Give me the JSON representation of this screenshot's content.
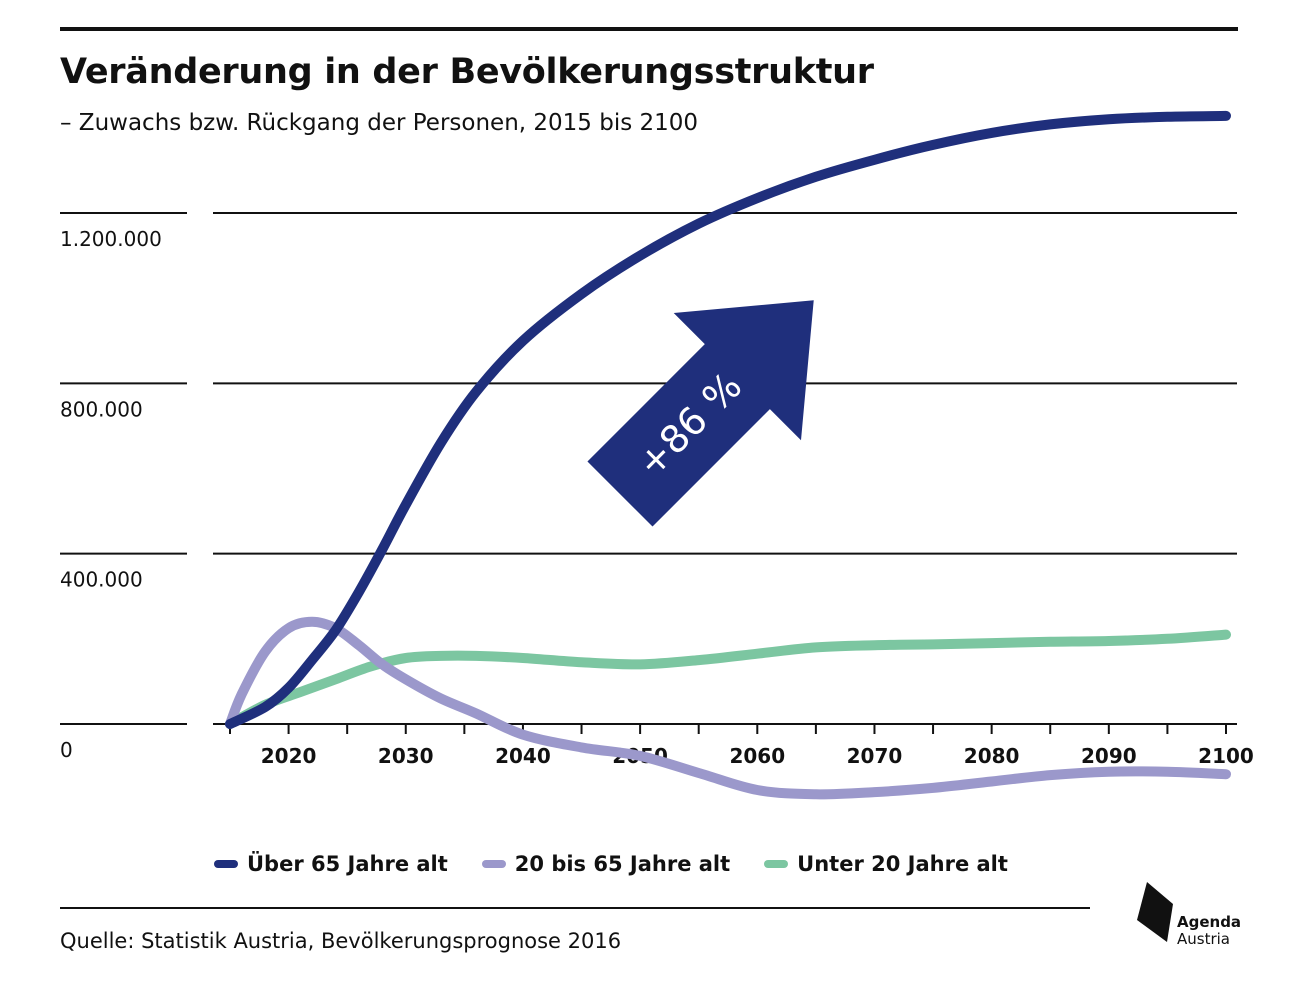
{
  "title": "Veränderung in der Bevölkerungsstruktur",
  "subtitle": "– Zuwachs bzw. Rückgang der Personen, 2015 bis 2100",
  "source": "Quelle: Statistik Austria, Bevölkerungsprognose 2016",
  "logo": {
    "line1": "Agenda",
    "line2": "Austria"
  },
  "annotation": {
    "text": "+86 %",
    "color": "#1f2f7c"
  },
  "chart_data": {
    "type": "line",
    "title": "Veränderung in der Bevölkerungsstruktur",
    "subtitle": "– Zuwachs bzw. Rückgang der Personen, 2015 bis 2100",
    "xlabel": "",
    "ylabel": "",
    "x_ticks": [
      2020,
      2030,
      2040,
      2050,
      2060,
      2070,
      2080,
      2090,
      2100
    ],
    "y_ticks": [
      0,
      400000,
      800000,
      1200000
    ],
    "y_tick_labels": [
      "0",
      "400.000",
      "800.000",
      "1.200.000"
    ],
    "xlim": [
      2015,
      2102
    ],
    "ylim": [
      -150000,
      1400000
    ],
    "grid": "horizontal",
    "legend_position": "bottom",
    "annotations": [
      {
        "text": "+86 %",
        "series": "Über 65 Jahre alt"
      }
    ],
    "series": [
      {
        "name": "Über 65 Jahre alt",
        "color": "#1f2f7c",
        "x": [
          2015,
          2018,
          2020,
          2022,
          2024,
          2026,
          2028,
          2030,
          2033,
          2036,
          2040,
          2045,
          2050,
          2055,
          2060,
          2065,
          2070,
          2075,
          2080,
          2085,
          2090,
          2095,
          2100
        ],
        "y": [
          0,
          40000,
          85000,
          150000,
          220000,
          310000,
          410000,
          515000,
          660000,
          780000,
          900000,
          1010000,
          1100000,
          1175000,
          1235000,
          1285000,
          1325000,
          1360000,
          1388000,
          1408000,
          1420000,
          1426000,
          1428000
        ]
      },
      {
        "name": "20 bis 65 Jahre alt",
        "color": "#9b98cb",
        "x": [
          2015,
          2016,
          2018,
          2020,
          2022,
          2024,
          2026,
          2028,
          2030,
          2033,
          2036,
          2040,
          2045,
          2050,
          2055,
          2060,
          2065,
          2070,
          2075,
          2080,
          2085,
          2090,
          2095,
          2100
        ],
        "y": [
          0,
          70000,
          170000,
          225000,
          240000,
          225000,
          185000,
          140000,
          105000,
          60000,
          25000,
          -25000,
          -55000,
          -75000,
          -115000,
          -155000,
          -165000,
          -160000,
          -150000,
          -135000,
          -120000,
          -112000,
          -112000,
          -118000
        ]
      },
      {
        "name": "Unter 20 Jahre alt",
        "color": "#7cc6a1",
        "x": [
          2015,
          2018,
          2021,
          2024,
          2027,
          2030,
          2033,
          2036,
          2040,
          2045,
          2050,
          2055,
          2060,
          2065,
          2070,
          2075,
          2080,
          2085,
          2090,
          2095,
          2100
        ],
        "y": [
          0,
          45000,
          75000,
          105000,
          135000,
          155000,
          160000,
          160000,
          155000,
          145000,
          140000,
          150000,
          165000,
          180000,
          185000,
          187000,
          190000,
          193000,
          195000,
          200000,
          210000
        ]
      }
    ]
  }
}
